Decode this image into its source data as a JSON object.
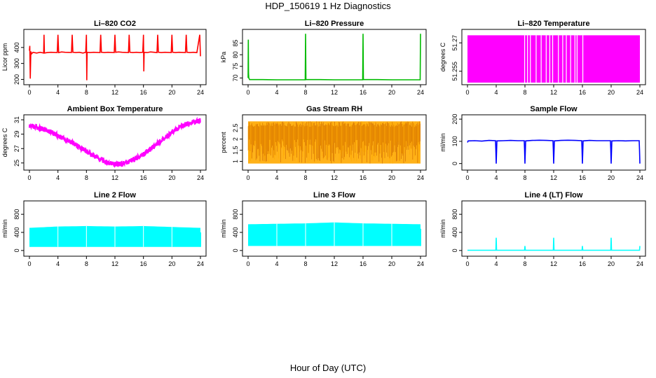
{
  "title": "HDP_150619  1 Hz Diagnostics",
  "xlabel": "Hour of Day (UTC)",
  "chart_data": [
    {
      "type": "line",
      "title": "Li–820 CO2",
      "ylabel": "Licor ppm",
      "color": "#ff0000",
      "xlim": [
        0,
        24
      ],
      "ylim": [
        180,
        500
      ],
      "xticks": [
        0,
        4,
        8,
        12,
        16,
        20,
        24
      ],
      "yticks": [
        200,
        300,
        400
      ],
      "series": [
        {
          "x": [
            0,
            0.05,
            0.12,
            0.2,
            0.3,
            0.5,
            1,
            1.5,
            2,
            2.05,
            2.1,
            2.5,
            3,
            3.9,
            4,
            4.1,
            4.5,
            5,
            5.9,
            6,
            6.1,
            6.5,
            7,
            7.5,
            7.9,
            8,
            8.05,
            8.1,
            8.5,
            9,
            9.9,
            10,
            10.1,
            10.5,
            11,
            11.9,
            12,
            12.1,
            12.5,
            13,
            13.9,
            14,
            14.1,
            14.5,
            15,
            15.5,
            15.9,
            16,
            16.05,
            16.1,
            16.5,
            17,
            17.9,
            18,
            18.1,
            18.5,
            19,
            19.9,
            20,
            20.1,
            20.5,
            21,
            21.9,
            22,
            22.1,
            22.5,
            23,
            23.5,
            23.9,
            24
          ],
          "y": [
            380,
            410,
            205,
            375,
            360,
            370,
            365,
            370,
            365,
            480,
            365,
            368,
            370,
            368,
            480,
            368,
            372,
            370,
            369,
            480,
            370,
            368,
            370,
            365,
            370,
            480,
            195,
            370,
            368,
            370,
            368,
            480,
            370,
            368,
            370,
            368,
            480,
            370,
            372,
            370,
            368,
            480,
            370,
            368,
            370,
            368,
            370,
            480,
            250,
            370,
            368,
            372,
            368,
            480,
            370,
            368,
            370,
            368,
            480,
            370,
            368,
            370,
            368,
            480,
            370,
            368,
            370,
            368,
            480,
            345
          ]
        }
      ]
    },
    {
      "type": "line",
      "title": "Li–820 Pressure",
      "ylabel": "kPa",
      "color": "#00bb00",
      "xlim": [
        0,
        24
      ],
      "ylim": [
        68,
        90
      ],
      "xticks": [
        0,
        4,
        8,
        12,
        16,
        20,
        24
      ],
      "yticks": [
        70,
        75,
        80,
        85
      ],
      "series": [
        {
          "x": [
            0,
            0.03,
            0.06,
            0.1,
            0.2,
            2,
            4,
            6,
            7.95,
            8,
            8.05,
            10,
            12,
            14,
            15.95,
            16,
            16.05,
            18,
            20,
            22,
            23.95,
            24
          ],
          "y": [
            70,
            86.5,
            72,
            70,
            69.3,
            69.3,
            69.2,
            69.2,
            69.2,
            89,
            69.3,
            69.3,
            69.2,
            69.2,
            69.2,
            89,
            69.3,
            69.3,
            69.2,
            69.2,
            69.2,
            89
          ]
        }
      ]
    },
    {
      "type": "area",
      "title": "Li–820 Temperature",
      "ylabel": "degrees C",
      "color": "#ff00ff",
      "xlim": [
        0,
        24
      ],
      "ylim": [
        51.249,
        51.276
      ],
      "xticks": [
        0,
        4,
        8,
        12,
        16,
        20,
        24
      ],
      "yticks": [
        51.255,
        51.27
      ],
      "band": [
        51.249,
        51.274
      ],
      "gaps": [
        7.9,
        8.3,
        8.7,
        9.5,
        10.2,
        10.9,
        11.4,
        11.8,
        12.6,
        13.2,
        13.7,
        14.3,
        14.9,
        15.2,
        16.0
      ]
    },
    {
      "type": "line",
      "title": "Ambient Box Temperature",
      "ylabel": "degrees C",
      "color": "#ff00ff",
      "xlim": [
        0,
        24
      ],
      "ylim": [
        24.3,
        31.4
      ],
      "xticks": [
        0,
        4,
        8,
        12,
        16,
        20,
        24
      ],
      "yticks": [
        25,
        27,
        29,
        31
      ],
      "series": [
        {
          "x": [
            0,
            1,
            2,
            3,
            4,
            5,
            6,
            7,
            8,
            9,
            10,
            11,
            12,
            13,
            14,
            15,
            16,
            17,
            18,
            19,
            20,
            21,
            22,
            23,
            24
          ],
          "y": [
            30.2,
            30.0,
            29.7,
            29.3,
            28.8,
            28.3,
            27.8,
            27.2,
            26.6,
            26.0,
            25.5,
            25.0,
            24.8,
            24.9,
            25.2,
            25.6,
            26.2,
            26.9,
            27.7,
            28.5,
            29.3,
            29.9,
            30.4,
            30.7,
            30.9
          ]
        }
      ]
    },
    {
      "type": "area",
      "title": "Gas Stream RH",
      "ylabel": "percent",
      "color": "#ffaa00",
      "color2": "#cc6600",
      "xlim": [
        0,
        24
      ],
      "ylim": [
        0.7,
        3.0
      ],
      "xticks": [
        0,
        4,
        8,
        12,
        16,
        20,
        24
      ],
      "yticks": [
        1.0,
        1.5,
        2.0,
        2.5
      ],
      "band": [
        0.9,
        2.8
      ]
    },
    {
      "type": "line",
      "title": "Sample Flow",
      "ylabel": "ml/min",
      "color": "#0000ff",
      "xlim": [
        0,
        24
      ],
      "ylim": [
        -20,
        210
      ],
      "xticks": [
        0,
        4,
        8,
        12,
        16,
        20,
        24
      ],
      "yticks": [
        0,
        100,
        200
      ],
      "series": [
        {
          "x": [
            0,
            0.1,
            1,
            2,
            3,
            3.9,
            3.95,
            4,
            4.1,
            5,
            6,
            7,
            7.9,
            7.95,
            8,
            8.1,
            9,
            10,
            11,
            11.9,
            11.95,
            12,
            12.1,
            13,
            14,
            15,
            15.9,
            15.95,
            16,
            16.1,
            17,
            18,
            19,
            19.9,
            19.95,
            20,
            20.1,
            21,
            22,
            23,
            23.9,
            23.95,
            24
          ],
          "y": [
            95,
            102,
            103,
            101,
            104,
            103,
            60,
            0,
            102,
            103,
            104,
            103,
            103,
            60,
            0,
            102,
            104,
            105,
            104,
            103,
            60,
            0,
            102,
            104,
            105,
            104,
            103,
            60,
            0,
            102,
            104,
            103,
            103,
            103,
            60,
            0,
            102,
            103,
            102,
            103,
            103,
            60,
            0
          ]
        }
      ]
    },
    {
      "type": "area",
      "title": "Line 2 Flow",
      "ylabel": "ml/min",
      "color": "#00ffff",
      "xlim": [
        0,
        24
      ],
      "ylim": [
        -80,
        1050
      ],
      "xticks": [
        0,
        4,
        8,
        12,
        16,
        20,
        24
      ],
      "yticks": [
        0,
        400,
        800
      ],
      "upper_x": [
        0,
        4,
        8,
        12,
        16,
        20,
        24
      ],
      "upper_y": [
        500,
        530,
        540,
        530,
        540,
        520,
        500
      ],
      "lower": 80,
      "dips": [
        4,
        8,
        12,
        16,
        20
      ]
    },
    {
      "type": "area",
      "title": "Line 3 Flow",
      "ylabel": "ml/min",
      "color": "#00ffff",
      "xlim": [
        0,
        24
      ],
      "ylim": [
        -80,
        1050
      ],
      "xticks": [
        0,
        4,
        8,
        12,
        16,
        20,
        24
      ],
      "yticks": [
        0,
        400,
        800
      ],
      "upper_x": [
        0,
        4,
        8,
        12,
        16,
        20,
        24
      ],
      "upper_y": [
        580,
        590,
        600,
        620,
        600,
        590,
        580
      ],
      "lower": 100,
      "dips": [
        4,
        8,
        12,
        16,
        20
      ]
    },
    {
      "type": "line",
      "title": "Line 4 (LT) Flow",
      "ylabel": "ml/min",
      "color": "#00ffff",
      "xlim": [
        0,
        24
      ],
      "ylim": [
        -80,
        1050
      ],
      "xticks": [
        0,
        4,
        8,
        12,
        16,
        20,
        24
      ],
      "yticks": [
        0,
        400,
        800
      ],
      "series": [
        {
          "x": [
            0,
            3.95,
            4,
            4.05,
            7.95,
            8,
            8.05,
            11.95,
            12,
            12.05,
            15.95,
            16,
            16.05,
            19.95,
            20,
            20.05,
            23.95,
            24
          ],
          "y": [
            5,
            5,
            280,
            5,
            5,
            100,
            5,
            5,
            280,
            5,
            5,
            100,
            5,
            5,
            280,
            5,
            5,
            100
          ]
        }
      ]
    }
  ]
}
